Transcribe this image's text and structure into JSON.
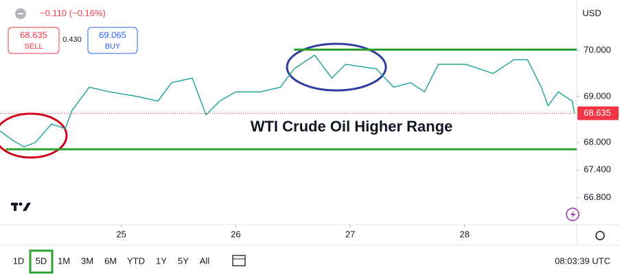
{
  "chart_data": {
    "type": "line",
    "title": "WTI Crude Oil Higher Range",
    "x": [
      23.94,
      24.05,
      24.15,
      24.25,
      24.39,
      24.51,
      24.57,
      24.72,
      24.9,
      25.14,
      25.32,
      25.44,
      25.62,
      25.74,
      25.86,
      26.0,
      26.21,
      26.39,
      26.51,
      26.69,
      26.84,
      26.96,
      27.23,
      27.38,
      27.53,
      27.65,
      27.77,
      28.01,
      28.25,
      28.43,
      28.55,
      28.67,
      28.73,
      28.82,
      28.94,
      28.96
    ],
    "values": [
      68.25,
      68.05,
      67.9,
      68.0,
      68.4,
      68.3,
      68.7,
      69.2,
      69.1,
      69.0,
      68.9,
      69.3,
      69.4,
      68.6,
      68.9,
      69.1,
      69.1,
      69.2,
      69.6,
      69.9,
      69.4,
      69.7,
      69.6,
      69.2,
      69.3,
      69.1,
      69.7,
      69.7,
      69.5,
      69.8,
      69.8,
      69.2,
      68.8,
      69.1,
      68.9,
      68.635
    ],
    "color": "#26a69a",
    "xlim": [
      23.94,
      28.98
    ],
    "ylim": [
      66.21,
      71.1
    ],
    "xticks": [
      25,
      26,
      27,
      28
    ],
    "yticks": [
      {
        "value": 66.8,
        "label": "66.800"
      },
      {
        "value": 67.4,
        "label": "67.400"
      },
      {
        "value": 68,
        "label": "68.000"
      },
      {
        "value": 69,
        "label": "69.000"
      },
      {
        "value": 70,
        "label": "70.000"
      }
    ],
    "last_price": 68.635,
    "last_price_color": "#f23645",
    "levels": [
      {
        "value": 70.02,
        "from": 26.51,
        "color": "#2ca02c"
      },
      {
        "value": 67.85,
        "from": 23.99,
        "color": "#2ca02c"
      }
    ]
  },
  "header": {
    "change": "−0.110 (−0.16%)",
    "sell_price": "68.635",
    "sell": "SELL",
    "spread": "0.430",
    "buy_price": "69.065",
    "buy": "BUY",
    "currency": "USD"
  },
  "toolbar": {
    "ranges": [
      "1D",
      "5D",
      "1M",
      "3M",
      "6M",
      "YTD",
      "1Y",
      "5Y",
      "All"
    ],
    "selected": 1,
    "clock": "08:03:39 UTC"
  }
}
